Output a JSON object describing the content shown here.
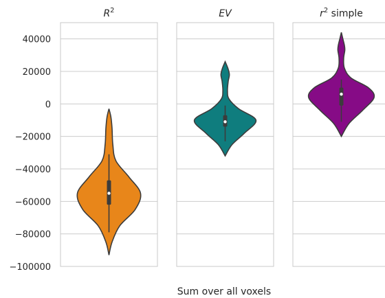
{
  "chart_data": {
    "type": "violin",
    "xlabel": "Sum over all voxels",
    "ylim": [
      -100000,
      50000
    ],
    "yticks": [
      40000,
      20000,
      0,
      -20000,
      -40000,
      -60000,
      -80000,
      -100000
    ],
    "ytick_labels": [
      "40000",
      "20000",
      "0",
      "−20000",
      "−40000",
      "−60000",
      "−80000",
      "−100000"
    ],
    "grid": true,
    "panels": [
      {
        "title_main": "R",
        "title_sup": "2",
        "title_rest": "",
        "color": "#e8861a",
        "min": -92000,
        "q1": -62000,
        "median": -55000,
        "q3": -47000,
        "max": -4000,
        "whisker_low": -79000,
        "whisker_high": -31000,
        "density_y": [
          -93000,
          -85000,
          -75000,
          -65000,
          -55000,
          -45000,
          -35000,
          -25000,
          -15000,
          -8000,
          -3000
        ],
        "density_w": [
          0.0,
          0.08,
          0.28,
          0.68,
          0.82,
          0.52,
          0.18,
          0.1,
          0.08,
          0.05,
          0.0
        ]
      },
      {
        "title_main": "EV",
        "title_sup": "",
        "title_rest": "",
        "color": "#0f7d7e",
        "min": -31000,
        "q1": -14000,
        "median": -11000,
        "q3": -7000,
        "max": 25000,
        "whisker_low": -23000,
        "whisker_high": -1000,
        "density_y": [
          -32000,
          -25000,
          -18000,
          -10000,
          -3000,
          3000,
          8000,
          14000,
          18000,
          22000,
          26000
        ],
        "density_w": [
          0.0,
          0.18,
          0.5,
          0.8,
          0.35,
          0.1,
          0.06,
          0.08,
          0.11,
          0.07,
          0.0
        ]
      },
      {
        "title_main": "r",
        "title_sup": "2",
        "title_rest": " simple",
        "color": "#860b86",
        "min": -19000,
        "q1": -1000,
        "median": 6000,
        "q3": 10000,
        "max": 43000,
        "whisker_low": -11000,
        "whisker_high": 15000,
        "density_y": [
          -20000,
          -12000,
          -4000,
          4000,
          10000,
          16000,
          22000,
          28000,
          33000,
          36000,
          40000,
          44000
        ],
        "density_w": [
          0.0,
          0.2,
          0.55,
          0.85,
          0.7,
          0.25,
          0.08,
          0.06,
          0.09,
          0.08,
          0.04,
          0.0
        ]
      }
    ]
  }
}
